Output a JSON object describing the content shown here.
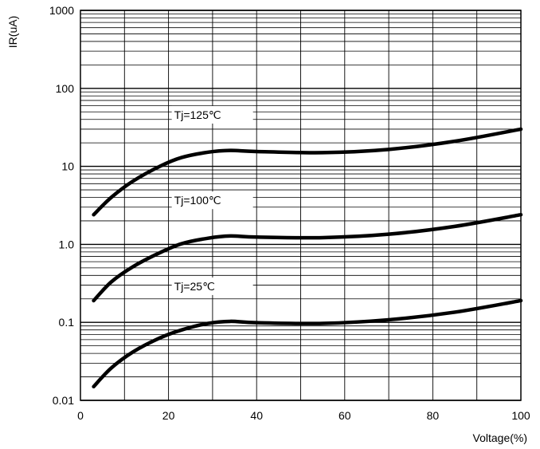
{
  "chart_data": {
    "type": "line",
    "title": "",
    "xlabel": "Voltage(%)",
    "ylabel": "IR(uA)",
    "xlim": [
      0,
      100
    ],
    "ylim": [
      0.01,
      1000
    ],
    "yscale": "log",
    "grid": true,
    "x_ticks": [
      0,
      20,
      40,
      60,
      80,
      100
    ],
    "x_tick_labels": [
      "0",
      "20",
      "40",
      "60",
      "80",
      "100"
    ],
    "y_ticks": [
      0.01,
      0.1,
      1.0,
      10,
      100,
      1000
    ],
    "y_tick_labels": [
      "0.01",
      "0.1",
      "1.0",
      "10",
      "100",
      "1000"
    ],
    "series": [
      {
        "name": "Tj=125℃",
        "x": [
          3,
          7,
          12,
          18,
          23,
          29,
          34,
          40,
          55,
          70,
          85,
          100
        ],
        "y": [
          2.4,
          4.0,
          6.5,
          10.0,
          13.0,
          15.2,
          16.0,
          15.5,
          15.0,
          16.5,
          21.0,
          30.0
        ]
      },
      {
        "name": "Tj=100℃",
        "x": [
          3,
          7,
          12,
          18,
          23,
          29,
          34,
          40,
          55,
          70,
          85,
          100
        ],
        "y": [
          0.19,
          0.33,
          0.52,
          0.78,
          1.02,
          1.2,
          1.28,
          1.24,
          1.22,
          1.35,
          1.7,
          2.4
        ]
      },
      {
        "name": "Tj=25℃",
        "x": [
          3,
          7,
          12,
          18,
          23,
          29,
          34,
          40,
          55,
          70,
          85,
          100
        ],
        "y": [
          0.015,
          0.026,
          0.042,
          0.063,
          0.08,
          0.097,
          0.103,
          0.099,
          0.097,
          0.108,
          0.135,
          0.19
        ]
      }
    ]
  }
}
